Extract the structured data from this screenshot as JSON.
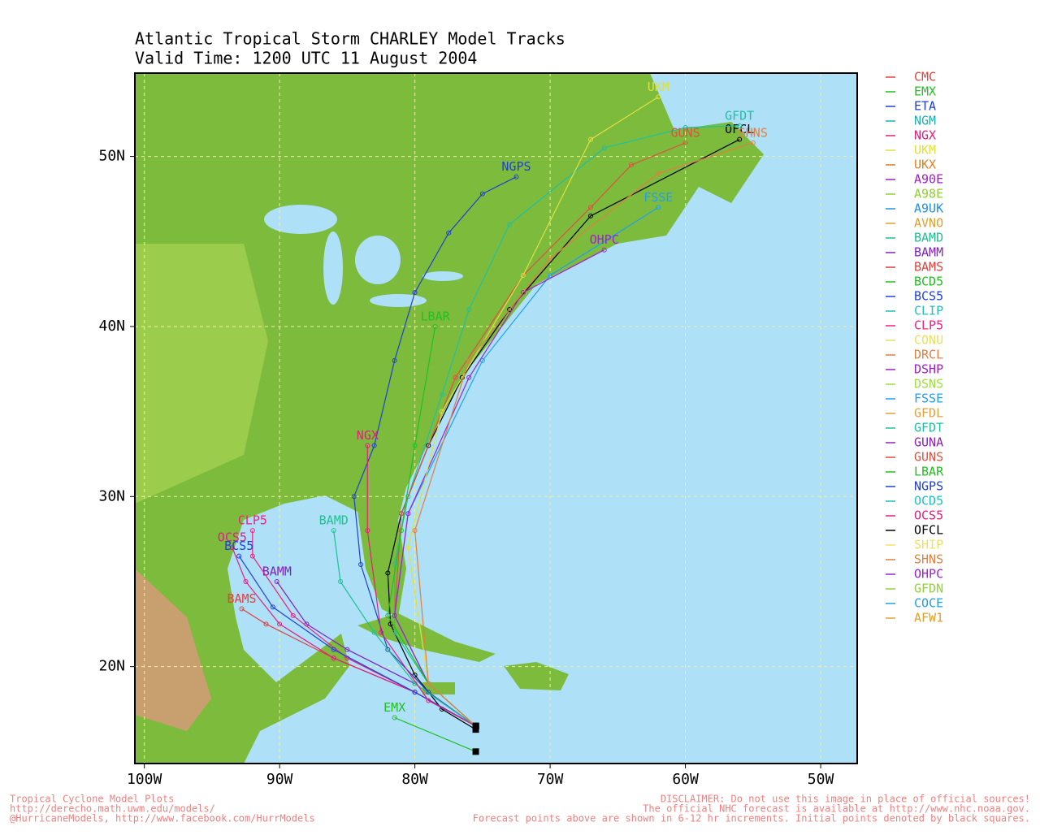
{
  "title": "Atlantic Tropical Storm CHARLEY Model Tracks",
  "subtitle": "Valid Time: 1200 UTC 11 August 2004",
  "map": {
    "xlim": [
      -100.7,
      -47.3
    ],
    "ylim": [
      14.3,
      54.9
    ],
    "xticks": [
      {
        "value": -100,
        "label": "100W"
      },
      {
        "value": -90,
        "label": "90W"
      },
      {
        "value": -80,
        "label": "80W"
      },
      {
        "value": -70,
        "label": "70W"
      },
      {
        "value": -60,
        "label": "60W"
      },
      {
        "value": -50,
        "label": "50W"
      }
    ],
    "yticks": [
      {
        "value": 20,
        "label": "20N"
      },
      {
        "value": 30,
        "label": "30N"
      },
      {
        "value": 40,
        "label": "40N"
      },
      {
        "value": 50,
        "label": "50N"
      }
    ],
    "grid": true,
    "tracks": [
      {
        "name": "OFCL",
        "color": "#000000",
        "lon": [
          -75.5,
          -78,
          -80,
          -81.8,
          -82,
          -81,
          -79,
          -76.5,
          -73,
          -67,
          -56
        ],
        "lat": [
          16.3,
          17.5,
          19.5,
          22.5,
          25.5,
          29,
          33,
          37,
          41,
          46.5,
          51
        ]
      },
      {
        "name": "NGPS",
        "color": "#2040d0",
        "lon": [
          -75.5,
          -79,
          -82,
          -84,
          -84.5,
          -83,
          -81.5,
          -80,
          -77.5,
          -75,
          -72.5
        ],
        "lat": [
          16.5,
          18.5,
          21,
          26,
          30,
          33,
          38,
          42,
          45.5,
          47.8,
          48.8
        ]
      },
      {
        "name": "GFDT",
        "color": "#20c0a0",
        "lon": [
          -75.5,
          -79,
          -81.5,
          -81.5,
          -80.5,
          -78,
          -76,
          -73,
          -66,
          -60,
          -56
        ],
        "lat": [
          16.5,
          19,
          22,
          26,
          30,
          36,
          41,
          46,
          50.5,
          51.7,
          51.8
        ]
      },
      {
        "name": "GUNS",
        "color": "#e05040",
        "lon": [
          -75.5,
          -79,
          -81.5,
          -81,
          -77,
          -72,
          -67,
          -64,
          -60
        ],
        "lat": [
          16.5,
          19,
          23,
          29,
          37,
          43,
          47,
          49.5,
          50.8
        ]
      },
      {
        "name": "FSSE",
        "color": "#20a0f0",
        "lon": [
          -75.5,
          -79,
          -81.5,
          -80.5,
          -75,
          -70,
          -62
        ],
        "lat": [
          16.5,
          19,
          23,
          29,
          38,
          43,
          47
        ]
      },
      {
        "name": "OHPC",
        "color": "#a020d0",
        "lon": [
          -75.5,
          -79,
          -81.5,
          -80.5,
          -76,
          -72,
          -66
        ],
        "lat": [
          16.5,
          19,
          23,
          29,
          37,
          42,
          44.5
        ]
      },
      {
        "name": "LBAR",
        "color": "#20c020",
        "lon": [
          -75.5,
          -79,
          -82,
          -81,
          -80,
          -78.5
        ],
        "lat": [
          16.5,
          19,
          23,
          28,
          33,
          40
        ]
      },
      {
        "name": "BAMM",
        "color": "#8020c0",
        "lon": [
          -75.5,
          -80,
          -85,
          -88,
          -90.2
        ],
        "lat": [
          16.5,
          19,
          21,
          22.5,
          25
        ]
      },
      {
        "name": "BAMS",
        "color": "#e04040",
        "lon": [
          -75.5,
          -80,
          -86,
          -91,
          -92.8
        ],
        "lat": [
          16.5,
          18.5,
          20.5,
          22.5,
          23.4
        ]
      },
      {
        "name": "CLP5",
        "color": "#f02080",
        "lon": [
          -75.5,
          -80,
          -85,
          -89,
          -92,
          -92
        ],
        "lat": [
          16.5,
          18.5,
          20.5,
          23,
          26.5,
          28
        ]
      },
      {
        "name": "OCS5",
        "color": "#e02080",
        "lon": [
          -75.5,
          -80,
          -86,
          -90,
          -92.5,
          -93.5
        ],
        "lat": [
          16.5,
          18.5,
          20.5,
          22.5,
          25,
          27
        ]
      },
      {
        "name": "BCS5",
        "color": "#2040e0",
        "lon": [
          -75.5,
          -80,
          -86,
          -90.5,
          -93
        ],
        "lat": [
          16.5,
          18.5,
          21,
          23.5,
          26.5
        ]
      },
      {
        "name": "BAMD",
        "color": "#20c090",
        "lon": [
          -75.5,
          -80,
          -83,
          -85.5,
          -86
        ],
        "lat": [
          16.5,
          19,
          22,
          25,
          28
        ]
      },
      {
        "name": "EMX",
        "color": "#20c020",
        "lon": [
          -75.5,
          -81.5
        ],
        "lat": [
          15,
          17
        ]
      },
      {
        "name": "NGX",
        "color": "#e0207a",
        "lon": [
          -75.5,
          -79,
          -82.5,
          -83.5,
          -83.5
        ],
        "lat": [
          16.5,
          18,
          22,
          28,
          33
        ]
      },
      {
        "name": "UKM",
        "color": "#e0e040",
        "lon": [
          -75.5,
          -79,
          -80.5,
          -78,
          -72,
          -67,
          -62
        ],
        "lat": [
          16.5,
          19,
          27,
          35,
          43,
          51,
          53.5
        ]
      },
      {
        "name": "SHNS",
        "color": "#e08040",
        "lon": [
          -75.5,
          -79,
          -80,
          -76,
          -70,
          -62,
          -55
        ],
        "lat": [
          16.5,
          19,
          28,
          38,
          44,
          49,
          50.8
        ]
      }
    ],
    "legend": [
      {
        "name": "CMC",
        "color": "#e8403a"
      },
      {
        "name": "EMX",
        "color": "#20c020"
      },
      {
        "name": "ETA",
        "color": "#2040d0"
      },
      {
        "name": "NGM",
        "color": "#20b0b0"
      },
      {
        "name": "NGX",
        "color": "#e0207a"
      },
      {
        "name": "UKM",
        "color": "#e0e040"
      },
      {
        "name": "UKX",
        "color": "#e08020"
      },
      {
        "name": "A90E",
        "color": "#a020c0"
      },
      {
        "name": "A98E",
        "color": "#90d030"
      },
      {
        "name": "A9UK",
        "color": "#2090e0"
      },
      {
        "name": "AVNO",
        "color": "#e0a030"
      },
      {
        "name": "BAMD",
        "color": "#20c090"
      },
      {
        "name": "BAMM",
        "color": "#8020c0"
      },
      {
        "name": "BAMS",
        "color": "#e04040"
      },
      {
        "name": "BCD5",
        "color": "#20c020"
      },
      {
        "name": "BCS5",
        "color": "#2040e0"
      },
      {
        "name": "CLIP",
        "color": "#20c0c0"
      },
      {
        "name": "CLP5",
        "color": "#f02080"
      },
      {
        "name": "CONU",
        "color": "#e8e060"
      },
      {
        "name": "DRCL",
        "color": "#e08040"
      },
      {
        "name": "DSHP",
        "color": "#a020c0"
      },
      {
        "name": "DSNS",
        "color": "#a0e040"
      },
      {
        "name": "FSSE",
        "color": "#20a0f0"
      },
      {
        "name": "GFDL",
        "color": "#e0a040"
      },
      {
        "name": "GFDT",
        "color": "#20c0a0"
      },
      {
        "name": "GUNA",
        "color": "#9020c0"
      },
      {
        "name": "GUNS",
        "color": "#e05040"
      },
      {
        "name": "LBAR",
        "color": "#20c020"
      },
      {
        "name": "NGPS",
        "color": "#2040d0"
      },
      {
        "name": "OCD5",
        "color": "#20c0c0"
      },
      {
        "name": "OCS5",
        "color": "#e02080"
      },
      {
        "name": "OFCL",
        "color": "#000000"
      },
      {
        "name": "SHIP",
        "color": "#f0e060"
      },
      {
        "name": "SHNS",
        "color": "#e08040"
      },
      {
        "name": "OHPC",
        "color": "#a020d0"
      },
      {
        "name": "GFDN",
        "color": "#90d040"
      },
      {
        "name": "COCE",
        "color": "#20a0e0"
      },
      {
        "name": "AFW1",
        "color": "#e0a030"
      }
    ]
  },
  "footer": {
    "left": [
      "Tropical Cyclone Model Plots",
      "http://derecho.math.uwm.edu/models/",
      "@HurricaneModels, http://www.facebook.com/HurrModels"
    ],
    "right": [
      "DISCLAIMER: Do not use this image in place of official sources!",
      "The official NHC forecast is available at http://www.nhc.noaa.gov.",
      "Forecast points above are shown in 6-12 hr increments. Initial points denoted by black squares."
    ]
  }
}
